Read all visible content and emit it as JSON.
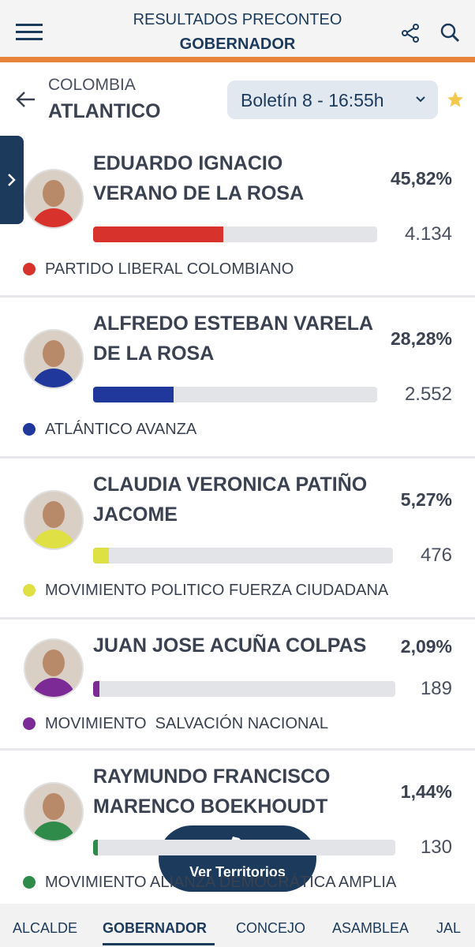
{
  "header": {
    "title": "RESULTADOS PRECONTEO",
    "subtitle": "GOBERNADOR"
  },
  "location": {
    "country": "COLOMBIA",
    "region": "ATLANTICO",
    "bulletin": "Boletín 8 - 16:55h"
  },
  "candidates": [
    {
      "name_lines": [
        "EDUARDO IGNACIO",
        "VERANO DE LA ROSA"
      ],
      "percent": {
        "value": 45.82,
        "label": "45,82%"
      },
      "votes": "4.134",
      "party": "PARTIDO LIBERAL COLOMBIANO",
      "color": "#d8322c"
    },
    {
      "name_lines": [
        "ALFREDO ESTEBAN VARELA",
        "DE LA ROSA"
      ],
      "percent": {
        "value": 28.28,
        "label": "28,28%"
      },
      "votes": "2.552",
      "party": "ATLÁNTICO AVANZA",
      "color": "#20379c"
    },
    {
      "name_lines": [
        "CLAUDIA VERONICA PATIÑO",
        "JACOME"
      ],
      "percent": {
        "value": 5.27,
        "label": "5,27%"
      },
      "votes": "476",
      "party": "MOVIMIENTO POLITICO FUERZA CIUDADANA",
      "color": "#dfe043"
    },
    {
      "name_lines": [
        "JUAN JOSE ACUÑA COLPAS"
      ],
      "percent": {
        "value": 2.09,
        "label": "2,09%"
      },
      "votes": "189",
      "party": "MOVIMIENTO  SALVACIÓN NACIONAL",
      "color": "#7b2a96"
    },
    {
      "name_lines": [
        "RAYMUNDO FRANCISCO",
        "MARENCO BOEKHOUDT"
      ],
      "percent": {
        "value": 1.44,
        "label": "1,44%"
      },
      "votes": "130",
      "party": "MOVIMIENTO ALIANZA DEMOCRÁTICA AMPLIA",
      "color": "#2e8b4a"
    }
  ],
  "button": "Ver Territorios",
  "tabs": [
    "ALCALDE",
    "GOBERNADOR",
    "CONCEJO",
    "ASAMBLEA",
    "JAL"
  ]
}
